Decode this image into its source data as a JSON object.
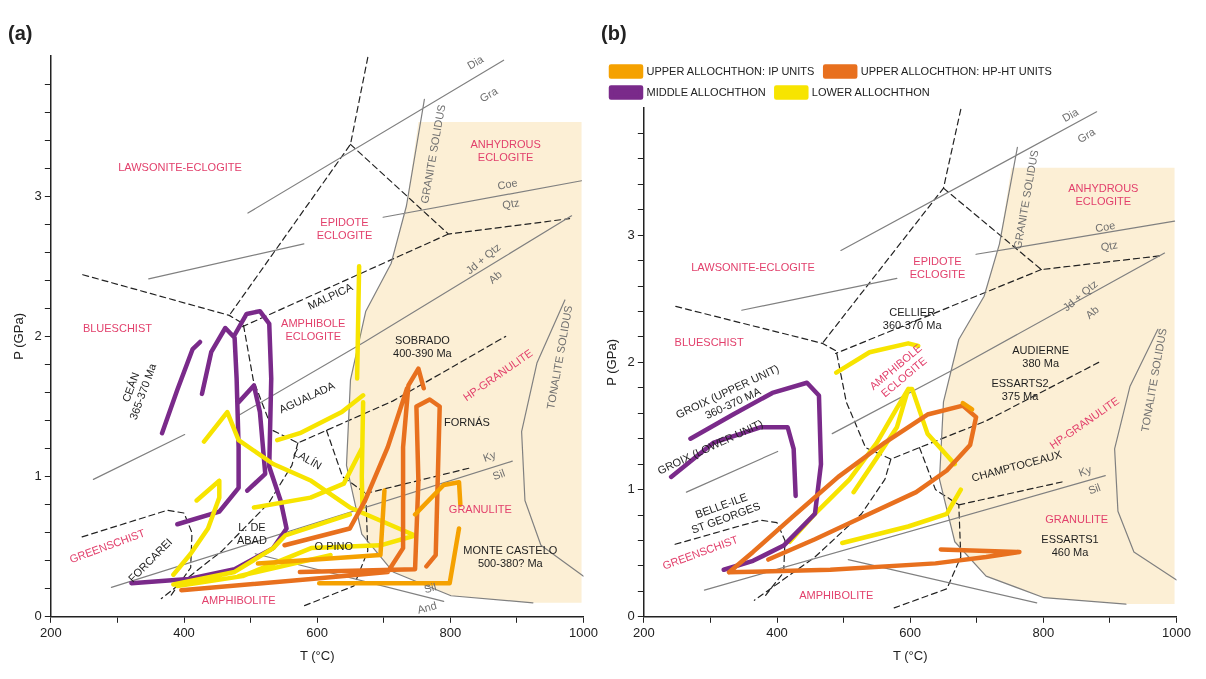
{
  "chart_data": [
    {
      "type": "line",
      "title": "(a)",
      "xlabel": "T (°C)",
      "ylabel": "P (GPa)",
      "xlim": [
        200,
        1000
      ],
      "ylim": [
        0,
        4
      ],
      "xticks": [
        200,
        {
          "value": 300,
          "label": null
        },
        400,
        {
          "value": 500,
          "label": null
        },
        600,
        {
          "value": 700,
          "label": null
        },
        800,
        {
          "value": 900,
          "label": null
        },
        1000
      ],
      "yticks": [
        0,
        {
          "value": 0.2,
          "label": null
        },
        {
          "value": 0.4,
          "label": null
        },
        {
          "value": 0.6,
          "label": null
        },
        {
          "value": 0.8,
          "label": null
        },
        1,
        {
          "value": 1.2,
          "label": null
        },
        {
          "value": 1.4,
          "label": null
        },
        {
          "value": 1.6,
          "label": null
        },
        {
          "value": 1.8,
          "label": null
        },
        2,
        {
          "value": 2.2,
          "label": null
        },
        {
          "value": 2.4,
          "label": null
        },
        {
          "value": 2.6,
          "label": null
        },
        {
          "value": 2.8,
          "label": null
        },
        3,
        {
          "value": 3.2,
          "label": null
        },
        {
          "value": 3.4,
          "label": null
        },
        {
          "value": 3.6,
          "label": null
        },
        {
          "value": 3.8,
          "label": null
        }
      ],
      "grid": false,
      "legend": false,
      "marker": "none",
      "series": [
        {
          "type": "area",
          "color": "#fcefd5",
          "x": [
            760,
            997,
            997,
            924,
            801,
            714,
            667,
            644,
            650,
            673,
            711,
            734,
            752
          ],
          "values": [
            3.53,
            3.53,
            0.1,
            0.1,
            0.15,
            0.32,
            0.59,
            1.08,
            1.69,
            2.18,
            2.52,
            2.93,
            3.53
          ]
        },
        {
          "color": "#808080",
          "line_style": "solid",
          "x": [
            496,
            880,
            null,
            347,
            580,
            null,
            699,
            997,
            null,
            264,
            401,
            null,
            483,
            671,
            982,
            null,
            761,
            734,
            711,
            673,
            650,
            644,
            667,
            714,
            801,
            924,
            null,
            972,
            930,
            907,
            912,
            936,
            1000,
            null,
            291,
            893,
            null,
            507,
            790
          ],
          "values": [
            2.88,
            3.97,
            null,
            2.41,
            2.66,
            null,
            2.85,
            3.11,
            null,
            0.98,
            1.3,
            null,
            1.44,
            1.96,
            2.86,
            null,
            3.69,
            2.93,
            2.52,
            2.18,
            1.69,
            1.08,
            0.59,
            0.32,
            0.15,
            0.1,
            null,
            2.26,
            1.81,
            1.32,
            0.83,
            0.51,
            0.29,
            null,
            0.21,
            1.11,
            null,
            0.45,
            0.11
          ]
        },
        {
          "color": "#222222",
          "line_style": "dashed",
          "x": [
            676,
            650,
            468,
            null,
            650,
            797,
            979,
            null,
            797,
            488,
            null,
            248,
            468,
            489,
            504,
            533,
            571,
            614,
            714,
            883,
            null,
            571,
            562,
            527,
            457,
            366,
            null,
            614,
            638,
            673,
            676,
            655,
            576,
            null,
            673,
            828,
            null,
            247,
            375,
            400,
            412,
            410,
            380
          ],
          "values": [
            3.99,
            3.37,
            2.15,
            null,
            3.37,
            2.73,
            2.84,
            null,
            2.73,
            2.07,
            null,
            2.44,
            2.15,
            2.09,
            1.69,
            1.33,
            1.24,
            1.33,
            1.54,
            2.0,
            null,
            1.24,
            1.08,
            0.81,
            0.47,
            0.13,
            null,
            1.33,
            1.0,
            0.88,
            0.47,
            0.22,
            0.07,
            null,
            0.88,
            1.06,
            null,
            0.57,
            0.76,
            0.74,
            0.6,
            0.35,
            0.15
          ]
        },
        {
          "color": "#f5a100",
          "x": [
            511,
            695,
            701,
            null,
            603,
            799,
            813,
            null,
            747,
            790,
            813,
            815
          ],
          "values": [
            0.38,
            0.44,
            0.9,
            null,
            0.24,
            0.24,
            0.63,
            null,
            0.73,
            0.94,
            0.96,
            0.8
          ]
        },
        {
          "color": "#e8701e",
          "x": [
            396,
            591,
            706,
            729,
            729,
            737,
            752,
            760,
            null,
            551,
            649,
            672,
            706,
            735,
            null,
            574,
            747,
            752,
            749,
            769,
            784,
            781,
            778,
            764
          ],
          "values": [
            0.19,
            0.27,
            0.32,
            0.49,
            1.21,
            1.65,
            1.77,
            1.63,
            null,
            0.51,
            0.63,
            0.83,
            1.21,
            1.63,
            null,
            0.32,
            0.34,
            0.97,
            1.5,
            1.55,
            1.5,
            0.97,
            0.44,
            0.36
          ]
        },
        {
          "color": "#f7e400",
          "x": [
            663,
            660,
            null,
            669,
            667,
            668,
            null,
            669,
            637,
            574,
            540,
            null,
            667,
            640,
            590,
            505,
            null,
            430,
            465,
            482,
            534,
            591,
            649,
            747,
            695,
            591,
            488,
            390,
            null,
            419,
            453,
            453,
            436,
            410,
            384,
            null,
            384,
            476,
            534,
            552,
            649,
            null,
            482,
            620
          ],
          "values": [
            2.5,
            1.7,
            null,
            1.53,
            1.0,
            0.78,
            null,
            1.58,
            1.46,
            1.31,
            1.26,
            null,
            1.2,
            0.95,
            0.85,
            0.78,
            null,
            1.25,
            1.46,
            1.26,
            1.09,
            0.97,
            0.78,
            0.58,
            0.51,
            0.49,
            0.29,
            0.22,
            null,
            0.83,
            0.97,
            0.85,
            0.63,
            0.45,
            0.3,
            null,
            0.23,
            0.32,
            0.49,
            0.58,
            0.73,
            null,
            0.29,
            0.44
          ]
        },
        {
          "color": "#7a2a8a",
          "x": [
            367,
            390,
            413,
            424,
            null,
            427,
            441,
            462,
            476,
            479,
            482,
            482,
            453,
            390,
            null,
            476,
            494,
            514,
            528,
            531,
            528,
            545,
            554,
            534,
            476,
            407,
            321,
            null,
            482,
            505,
            514,
            522,
            495
          ],
          "values": [
            1.31,
            1.62,
            1.91,
            1.96,
            null,
            1.59,
            1.89,
            2.06,
            1.99,
            1.7,
            1.21,
            0.92,
            0.75,
            0.66,
            null,
            2.01,
            2.16,
            2.18,
            2.09,
            1.7,
            1.07,
            0.83,
            0.63,
            0.49,
            0.34,
            0.27,
            0.24,
            null,
            1.53,
            1.65,
            1.46,
            1.02,
            0.9
          ]
        }
      ],
      "annotations": [
        "LAWSONITE-ECLOGITE",
        "ANHYDROUS\nECLOGITE",
        "EPIDOTE\nECLOGITE",
        "BLUESCHIST",
        "AMPHIBOLE\nECLOGITE",
        "HP-GRANULITE",
        "GRANULITE",
        "GREENSCHIST",
        "AMPHIBOLITE",
        "MALPICA",
        "SOBRADO\n400-390 Ma",
        "CEÁN\n365-370 Ma",
        "AGUALADA",
        "FORNÁS",
        "LALÍN",
        "L. DE\nABAD",
        "FORCAREI",
        "O PINO",
        "MONTE CASTELO\n500-380? Ma",
        "Dia",
        "Gra",
        "Coe",
        "Qtz",
        "Jd + Qtz",
        "Ab",
        "GRANITE SOLIDUS",
        "TONALITE SOLIDUS",
        "Ky",
        "Sil",
        "Sil",
        "And"
      ]
    },
    {
      "type": "line",
      "title": "(b)",
      "xlabel": "T (°C)",
      "ylabel": "P (GPa)",
      "xlim": [
        200,
        1000
      ],
      "ylim": [
        0,
        4
      ],
      "xticks": [
        200,
        {
          "value": 300,
          "label": null
        },
        400,
        {
          "value": 500,
          "label": null
        },
        600,
        {
          "value": 700,
          "label": null
        },
        800,
        {
          "value": 900,
          "label": null
        },
        1000
      ],
      "yticks": [
        0,
        {
          "value": 0.2,
          "label": null
        },
        {
          "value": 0.4,
          "label": null
        },
        {
          "value": 0.6,
          "label": null
        },
        {
          "value": 0.8,
          "label": null
        },
        1,
        {
          "value": 1.2,
          "label": null
        },
        {
          "value": 1.4,
          "label": null
        },
        {
          "value": 1.6,
          "label": null
        },
        {
          "value": 1.8,
          "label": null
        },
        2,
        {
          "value": 2.2,
          "label": null
        },
        {
          "value": 2.4,
          "label": null
        },
        {
          "value": 2.6,
          "label": null
        },
        {
          "value": 2.8,
          "label": null
        },
        3,
        {
          "value": 3.2,
          "label": null
        },
        {
          "value": 3.4,
          "label": null
        },
        {
          "value": 3.6,
          "label": null
        },
        {
          "value": 3.8,
          "label": null
        }
      ],
      "grid": false,
      "legend": "top left",
      "marker": "none",
      "series": [
        {
          "type": "area",
          "color": "#fcefd5",
          "x": [
            760,
            997,
            997,
            924,
            801,
            714,
            667,
            644,
            650,
            673,
            711,
            734,
            752
          ],
          "values": [
            3.53,
            3.53,
            0.1,
            0.1,
            0.15,
            0.32,
            0.59,
            1.08,
            1.69,
            2.18,
            2.52,
            2.93,
            3.53
          ]
        },
        {
          "color": "#808080",
          "line_style": "solid",
          "x": [
            496,
            880,
            null,
            347,
            580,
            null,
            699,
            997,
            null,
            264,
            401,
            null,
            483,
            671,
            982,
            null,
            761,
            734,
            711,
            673,
            650,
            644,
            667,
            714,
            801,
            924,
            null,
            972,
            930,
            907,
            912,
            936,
            1000,
            null,
            291,
            893,
            null,
            507,
            790
          ],
          "values": [
            2.88,
            3.97,
            null,
            2.41,
            2.66,
            null,
            2.85,
            3.11,
            null,
            0.98,
            1.3,
            null,
            1.44,
            1.96,
            2.86,
            null,
            3.69,
            2.93,
            2.52,
            2.18,
            1.69,
            1.08,
            0.59,
            0.32,
            0.15,
            0.1,
            null,
            2.26,
            1.81,
            1.32,
            0.83,
            0.51,
            0.29,
            null,
            0.21,
            1.11,
            null,
            0.45,
            0.11
          ]
        },
        {
          "color": "#222222",
          "line_style": "dashed",
          "x": [
            676,
            650,
            468,
            null,
            650,
            797,
            979,
            null,
            797,
            488,
            null,
            248,
            468,
            489,
            504,
            533,
            571,
            614,
            714,
            883,
            null,
            571,
            562,
            527,
            457,
            366,
            null,
            614,
            638,
            673,
            676,
            655,
            576,
            null,
            673,
            828,
            null,
            247,
            375,
            400,
            412,
            410,
            380
          ],
          "values": [
            3.99,
            3.37,
            2.15,
            null,
            3.37,
            2.73,
            2.84,
            null,
            2.73,
            2.07,
            null,
            2.44,
            2.15,
            2.09,
            1.69,
            1.33,
            1.24,
            1.33,
            1.54,
            2.0,
            null,
            1.24,
            1.08,
            0.81,
            0.47,
            0.13,
            null,
            1.33,
            1.0,
            0.88,
            0.47,
            0.22,
            0.07,
            null,
            0.88,
            1.06,
            null,
            0.57,
            0.76,
            0.74,
            0.6,
            0.35,
            0.15
          ]
        },
        {
          "name": "UPPER ALLOCHTHON: IP UNITS",
          "color": "#f5a100",
          "x": [
            679,
            693
          ],
          "values": [
            1.68,
            1.63
          ]
        },
        {
          "name": "UPPER ALLOCHTHON: HP-HT UNITS",
          "color": "#e8701e",
          "x": [
            328,
            364,
            422,
            492,
            562,
            626,
            679,
            699,
            690,
            655,
            609,
            539,
            457,
            387,
            null,
            646,
            764,
            714,
            638,
            480,
            328
          ],
          "values": [
            0.35,
            0.51,
            0.78,
            1.1,
            1.37,
            1.59,
            1.66,
            1.57,
            1.35,
            1.15,
            0.98,
            0.81,
            0.61,
            0.45,
            null,
            0.53,
            0.51,
            0.47,
            0.42,
            0.37,
            0.35
          ]
        },
        {
          "name": "MIDDLE ALLOCHTHON",
          "color": "#7a2a8a",
          "x": [
            270,
            334,
            393,
            445,
            463,
            466,
            457,
            410,
            364,
            320,
            null,
            241,
            305,
            375,
            416,
            425,
            428
          ],
          "values": [
            1.4,
            1.59,
            1.76,
            1.84,
            1.74,
            1.2,
            0.81,
            0.56,
            0.44,
            0.37,
            null,
            1.1,
            1.37,
            1.49,
            1.49,
            1.32,
            0.95
          ]
        },
        {
          "name": "LOWER ALLOCHTHON",
          "color": "#f7e400",
          "x": [
            489,
            539,
            597,
            612,
            null,
            419,
            457,
            509,
            550,
            580,
            597,
            603,
            626,
            667,
            null,
            597,
            580,
            550,
            515,
            null,
            676,
            655,
            597,
            498
          ],
          "values": [
            1.92,
            2.08,
            2.15,
            2.13,
            null,
            0.59,
            0.81,
            1.08,
            1.37,
            1.64,
            1.79,
            1.79,
            1.44,
            1.2,
            null,
            1.79,
            1.49,
            1.25,
            0.98,
            null,
            1.0,
            0.81,
            0.71,
            0.58
          ]
        }
      ],
      "annotations": [
        "LAWSONITE-ECLOGITE",
        "ANHYDROUS\nECLOGITE",
        "EPIDOTE\nECLOGITE",
        "BLUESCHIST",
        "CELLIER\n360-370 Ma",
        "AUDIERNE\n380 Ma",
        "AMPHIBOLE\nECLOGITE",
        "ESSARTS2\n375 Ma",
        "HP-GRANULITE",
        "GROIX (UPPER UNIT)\n360-370 MA",
        "GROIX (LOWER UNIT)",
        "CHAMPTOCEAUX",
        "BELLE-ILE\nST GEORGES",
        "GRANULITE",
        "GREENSCHIST",
        "ESSARTS1\n460 Ma",
        "AMPHIBOLITE",
        "Dia",
        "Gra",
        "Coe",
        "Qtz",
        "Jd + Qtz",
        "Ab",
        "GRANITE SOLIDUS",
        "TONALITE SOLIDUS",
        "Ky",
        "Sil"
      ]
    }
  ]
}
